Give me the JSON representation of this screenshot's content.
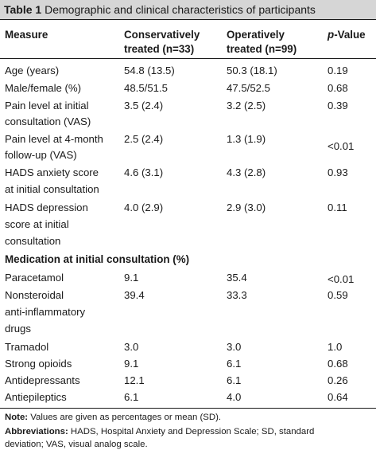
{
  "caption": {
    "lead": "Table 1",
    "text": "Demographic and clinical characteristics of participants"
  },
  "headers": {
    "measure": "Measure",
    "conservative_line1": "Conservatively",
    "conservative_line2": "treated (n=33)",
    "operative_line1": "Operatively",
    "operative_line2": "treated (n=99)",
    "p_italic": "p",
    "p_rest": "-Value"
  },
  "rows": [
    {
      "measure": [
        "Age (years)"
      ],
      "conservative": "54.8 (13.5)",
      "operative": "50.3 (18.1)",
      "p": "0.19"
    },
    {
      "measure": [
        "Male/female (%)"
      ],
      "conservative": "48.5/51.5",
      "operative": "47.5/52.5",
      "p": "0.68"
    },
    {
      "measure": [
        "Pain level at initial",
        "consultation (VAS)"
      ],
      "conservative": "3.5 (2.4)",
      "operative": "3.2 (2.5)",
      "p": "0.39"
    },
    {
      "measure": [
        "Pain level at 4-month",
        "follow-up (VAS)"
      ],
      "conservative": "2.5 (2.4)",
      "operative": "1.3 (1.9)",
      "p": "<0.01"
    },
    {
      "measure": [
        "HADS anxiety score",
        "at initial consultation"
      ],
      "conservative": "4.6 (3.1)",
      "operative": "4.3 (2.8)",
      "p": "0.93"
    },
    {
      "measure": [
        "HADS depression",
        "score at initial",
        "consultation"
      ],
      "conservative": "4.0 (2.9)",
      "operative": "2.9 (3.0)",
      "p": "0.11"
    }
  ],
  "section_label": "Medication at initial consultation (%)",
  "medication_rows": [
    {
      "measure": [
        "Paracetamol"
      ],
      "conservative": "9.1",
      "operative": "35.4",
      "p": "<0.01"
    },
    {
      "measure": [
        "Nonsteroidal",
        "anti-inflammatory",
        "drugs"
      ],
      "conservative": "39.4",
      "operative": "33.3",
      "p": "0.59"
    },
    {
      "measure": [
        "Tramadol"
      ],
      "conservative": "3.0",
      "operative": "3.0",
      "p": "1.0"
    },
    {
      "measure": [
        "Strong opioids"
      ],
      "conservative": "9.1",
      "operative": "6.1",
      "p": "0.68"
    },
    {
      "measure": [
        "Antidepressants"
      ],
      "conservative": "12.1",
      "operative": "6.1",
      "p": "0.26"
    },
    {
      "measure": [
        "Antiepileptics"
      ],
      "conservative": "6.1",
      "operative": "4.0",
      "p": "0.64"
    }
  ],
  "notes": {
    "note_label": "Note:",
    "note_text": " Values are given as percentages or mean (SD).",
    "abbr_label": "Abbreviations:",
    "abbr_text_line1": " HADS, Hospital Anxiety and Depression Scale; SD, standard",
    "abbr_text_line2": "deviation; VAS, visual analog scale."
  }
}
